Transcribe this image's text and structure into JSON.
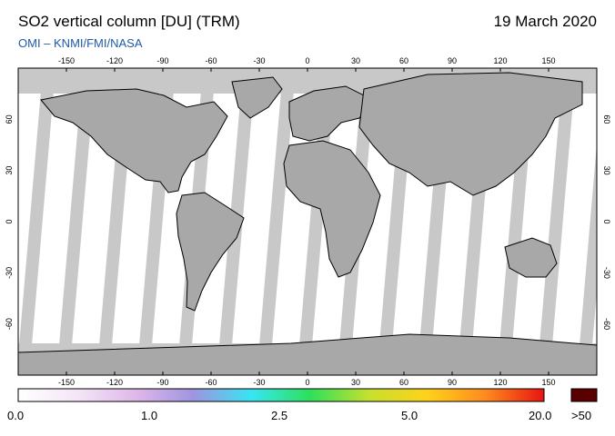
{
  "header": {
    "title": "SO2 vertical column [DU] (TRM)",
    "date": "19 March 2020",
    "credit": "OMI  –  KNMI/FMI/NASA"
  },
  "map": {
    "lon_ticks": [
      "-150",
      "-120",
      "-90",
      "-60",
      "-30",
      "0",
      "30",
      "60",
      "90",
      "120",
      "150"
    ],
    "lat_ticks": [
      "60",
      "30",
      "0",
      "-30",
      "-60"
    ],
    "colors": {
      "no_data": "#c8c8c8",
      "land_no_data": "#a0a0a0",
      "background_low": "#ffffff",
      "coastline": "#000000"
    }
  },
  "colorbar": {
    "labels": [
      "0.0",
      "1.0",
      "2.5",
      "5.0",
      "20.0",
      ">50"
    ],
    "gradient": [
      "#ffffff",
      "#f4e6f6",
      "#e0b8ea",
      "#9f94e0",
      "#36e6f2",
      "#2ee05a",
      "#c6e02e",
      "#ffd21a",
      "#ff8a1e",
      "#e81410"
    ],
    "overflow_color": "#5a0000"
  }
}
